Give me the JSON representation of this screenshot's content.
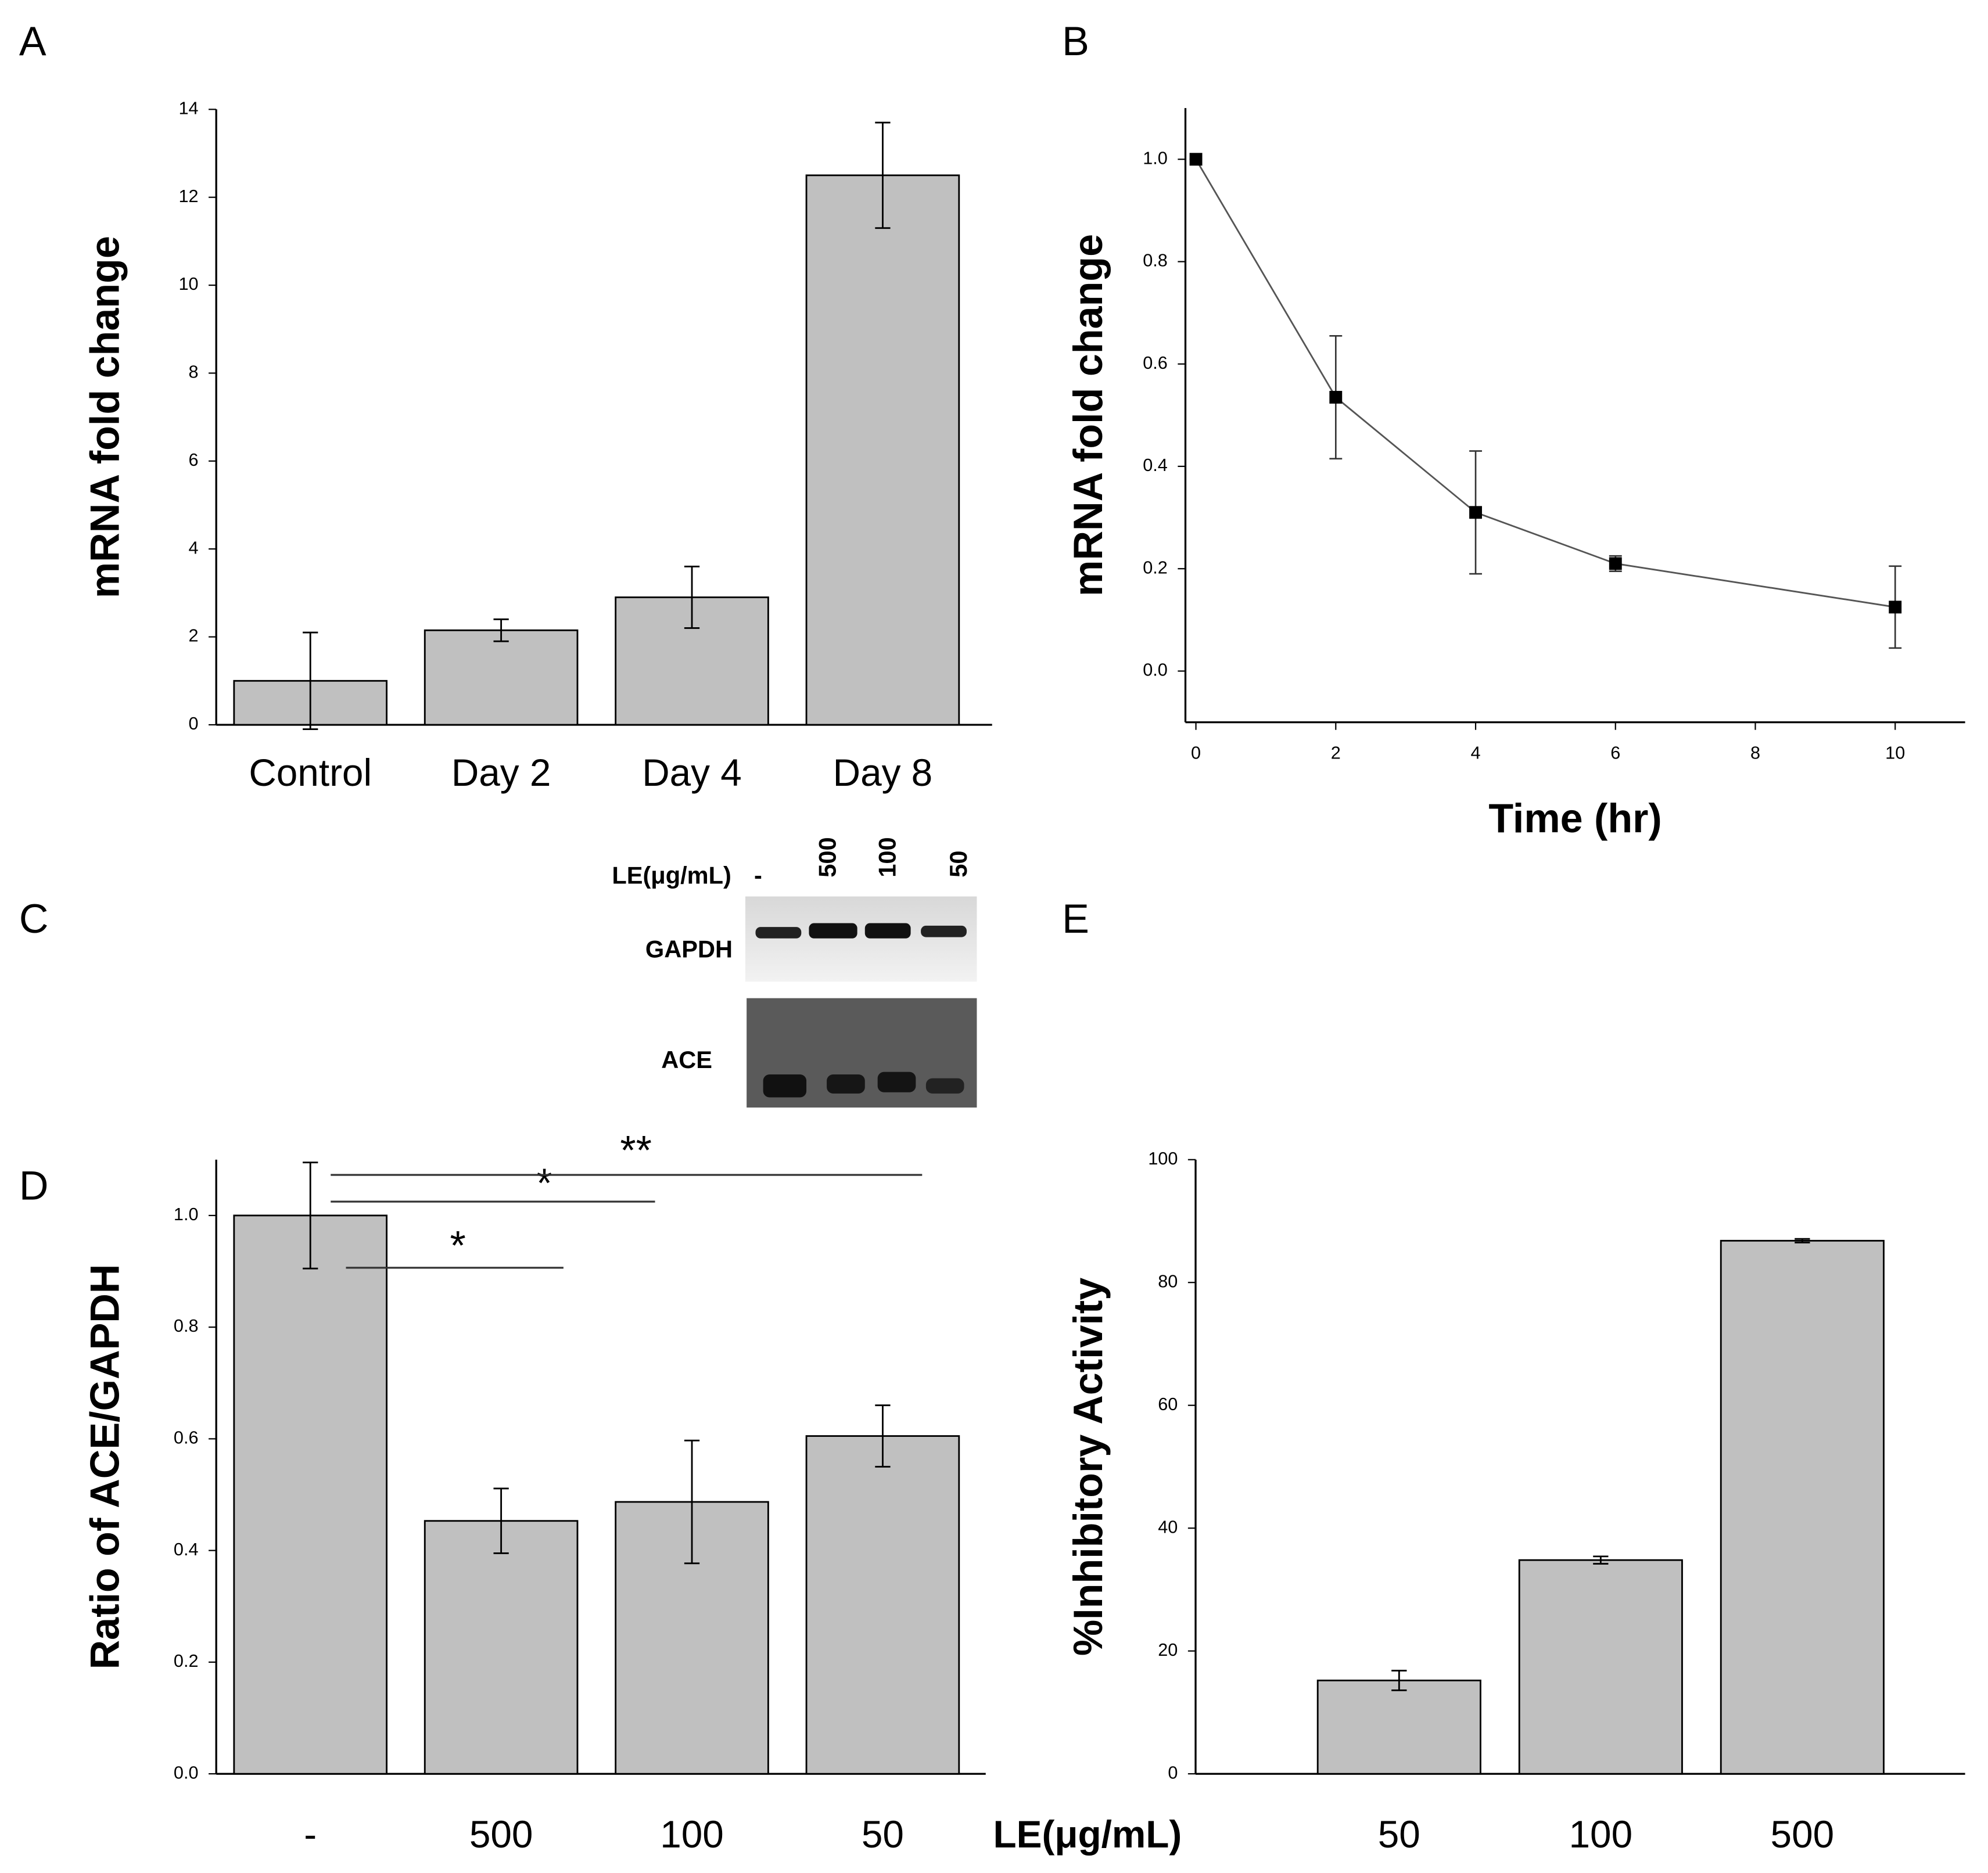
{
  "panel_labels": [
    "A",
    "B",
    "C",
    "D",
    "E"
  ],
  "blot": {
    "treatment_label": "LE(μg/mL)",
    "lanes": [
      "-",
      "500",
      "100",
      "50"
    ],
    "rows": [
      "GAPDH",
      "ACE"
    ]
  },
  "shared_xlabel": "LE(μg/mL)",
  "chart_data": [
    {
      "type": "bar",
      "ylabel": "mRNA fold change",
      "categories": [
        "Control",
        "Day 2",
        "Day 4",
        "Day 8"
      ],
      "values": [
        1.0,
        2.15,
        2.9,
        12.5
      ],
      "errors": [
        1.1,
        0.25,
        0.7,
        1.2
      ],
      "color": "#c0c0c0",
      "ylim": [
        0,
        14
      ],
      "yticks": [
        0,
        2,
        4,
        6,
        8,
        10,
        12,
        14
      ]
    },
    {
      "type": "line",
      "xlabel": "Time (hr)",
      "ylabel": "mRNA fold change",
      "x": [
        0,
        2,
        4,
        6,
        10
      ],
      "values": [
        1.0,
        0.535,
        0.31,
        0.21,
        0.125
      ],
      "errors": [
        0,
        0.12,
        0.12,
        0.015,
        0.08
      ],
      "color": "#555555",
      "marker_color": "#000000",
      "xlim": [
        -0.15,
        11.0
      ],
      "xticks": [
        0,
        2,
        4,
        6,
        8,
        10
      ],
      "ylim": [
        -0.1,
        1.1
      ],
      "yticks": [
        {
          "value": 0,
          "label": "0.0"
        },
        0.2,
        0.4,
        0.6,
        0.8,
        {
          "value": 1,
          "label": "1.0"
        }
      ]
    },
    {
      "type": "bar",
      "ylabel": "Ratio of ACE/GAPDH",
      "categories": [
        "-",
        "500",
        "100",
        "50"
      ],
      "values": [
        1.0,
        0.453,
        0.487,
        0.605
      ],
      "errors": [
        0.095,
        0.058,
        0.11,
        0.055
      ],
      "color": "#c0c0c0",
      "annotations": [
        "*",
        "*",
        "**"
      ],
      "ylim": [
        0,
        1.1
      ],
      "yticks": [
        {
          "value": 0,
          "label": "0.0"
        },
        0.2,
        0.4,
        0.6,
        0.8,
        {
          "value": 1,
          "label": "1.0"
        }
      ]
    },
    {
      "type": "bar",
      "ylabel": "%Inhibitory Activity",
      "categories": [
        "50",
        "100",
        "500"
      ],
      "values": [
        15.2,
        34.8,
        86.8
      ],
      "errors": [
        1.6,
        0.6,
        0.3
      ],
      "color": "#c0c0c0",
      "ylim": [
        0,
        100
      ],
      "yticks": [
        0,
        20,
        40,
        60,
        80,
        100
      ]
    }
  ]
}
